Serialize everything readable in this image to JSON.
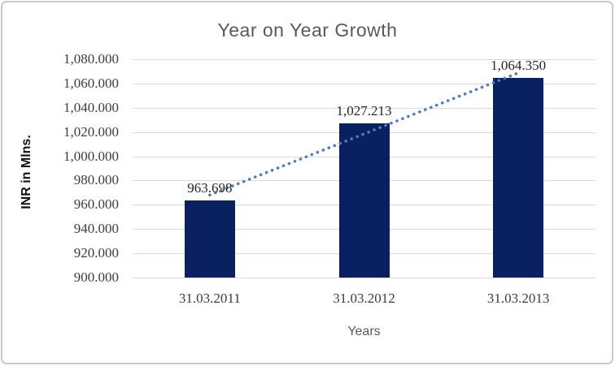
{
  "chart_data": {
    "type": "bar",
    "title": "Year on Year Growth",
    "xlabel": "Years",
    "ylabel": "INR in Mlns.",
    "categories": [
      "31.03.2011",
      "31.03.2012",
      "31.03.2013"
    ],
    "values": [
      963.698,
      1027.213,
      1064.35
    ],
    "data_labels": [
      "963.698",
      "1,027.213",
      "1,064.350"
    ],
    "ylim": [
      900,
      1080
    ],
    "ytick_step": 20,
    "ytick_labels_top_to_bottom": [
      "1,080.000",
      "1,060.000",
      "1,040.000",
      "1,020.000",
      "1,000.000",
      "980.000",
      "960.000",
      "940.000",
      "920.000",
      "900.000"
    ],
    "grid": true,
    "legend": "none",
    "trendline": {
      "type": "linear",
      "style": "dotted"
    },
    "colors": {
      "bar": "#0a2161",
      "trendline": "#4a7dc1",
      "gridline": "#d9d9d9",
      "title": "#595959",
      "axis_title": "#595959",
      "tick_label": "#3d3d3d",
      "data_label": "#262626",
      "frame_border": "#c9c9c9",
      "background": "#ffffff"
    }
  }
}
